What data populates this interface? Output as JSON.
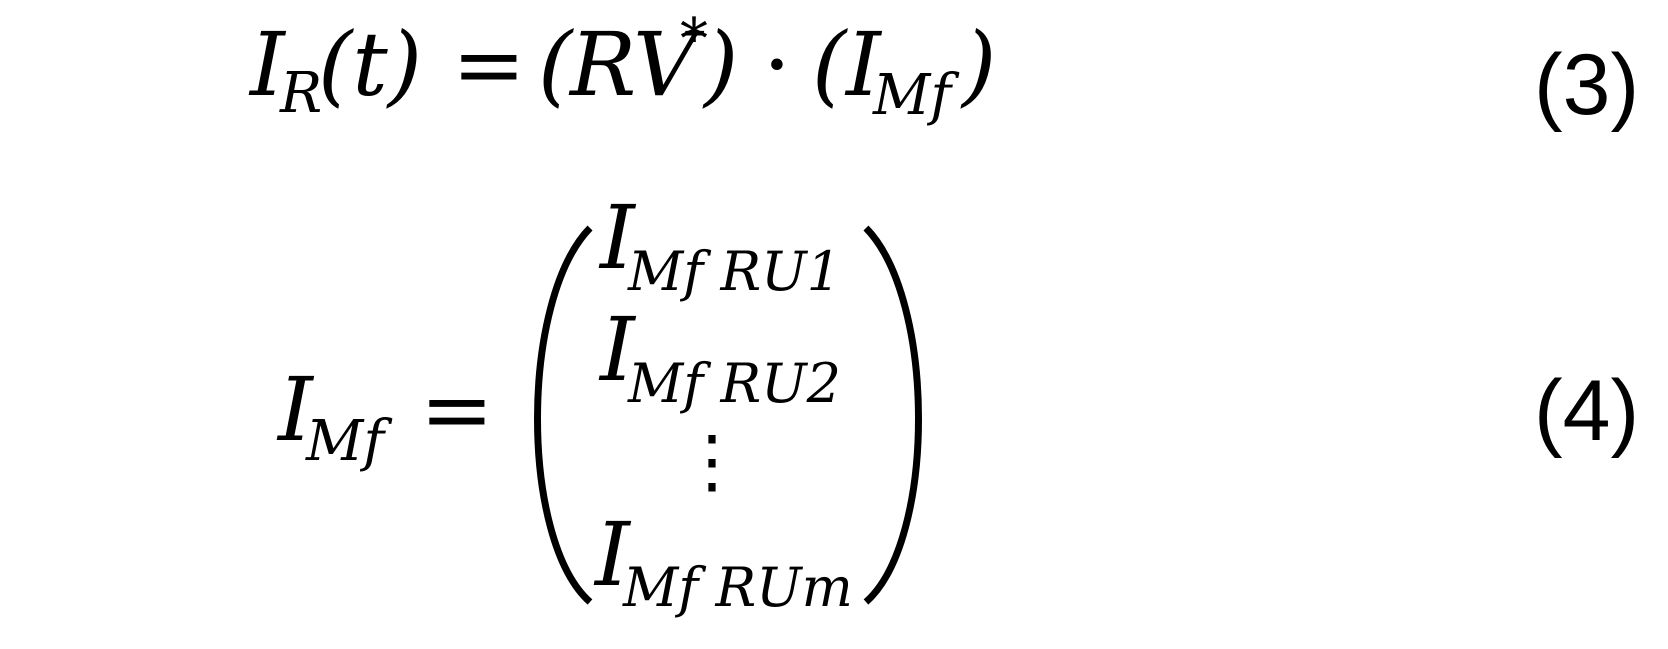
{
  "equation_3": {
    "lhs_var": "I",
    "lhs_sub": "R",
    "lhs_arg": "(t)",
    "equals": "=",
    "open_paren_1": "(",
    "rv": "RV",
    "rv_sup": "*",
    "close_paren_1": ")",
    "dot": "·",
    "open_paren_2": "(",
    "imf_var": "I",
    "imf_sub": "Mf",
    "close_paren_2": ")",
    "number": "(3)"
  },
  "equation_4": {
    "lhs_var": "I",
    "lhs_sub": "Mf",
    "equals": "=",
    "vector_entries": [
      {
        "var": "I",
        "sub": "Mf RU1"
      },
      {
        "var": "I",
        "sub": "Mf RU2"
      },
      {
        "vdots": "⋮"
      },
      {
        "var": "I",
        "sub": "Mf RUm"
      }
    ],
    "number": "(4)"
  }
}
